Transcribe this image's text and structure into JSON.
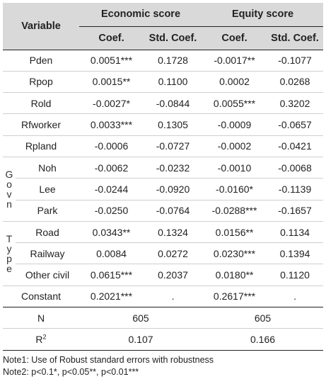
{
  "header": {
    "variable": "Variable",
    "economic": "Economic score",
    "equity": "Equity score",
    "coef": "Coef.",
    "std_coef": "Std. Coef."
  },
  "group_labels": {
    "govn": [
      "G",
      "o",
      "v",
      "n"
    ],
    "type": [
      "T",
      "y",
      "p",
      "e"
    ]
  },
  "rows": [
    {
      "var": "Pden",
      "e_coef": "0.0051***",
      "e_std": "0.1728",
      "q_coef": "-0.0017**",
      "q_std": "-0.1077"
    },
    {
      "var": "Rpop",
      "e_coef": "0.0015**",
      "e_std": "0.1100",
      "q_coef": "0.0002",
      "q_std": "0.0268"
    },
    {
      "var": "Rold",
      "e_coef": "-0.0027*",
      "e_std": "-0.0844",
      "q_coef": "0.0055***",
      "q_std": "0.3202"
    },
    {
      "var": "Rfworker",
      "e_coef": "0.0033***",
      "e_std": "0.1305",
      "q_coef": "-0.0009",
      "q_std": "-0.0657"
    },
    {
      "var": "Rpland",
      "e_coef": "-0.0006",
      "e_std": "-0.0727",
      "q_coef": "-0.0002",
      "q_std": "-0.0421"
    },
    {
      "var": "Noh",
      "e_coef": "-0.0062",
      "e_std": "-0.0232",
      "q_coef": "-0.0010",
      "q_std": "-0.0068"
    },
    {
      "var": "Lee",
      "e_coef": "-0.0244",
      "e_std": "-0.0920",
      "q_coef": "-0.0160*",
      "q_std": "-0.1139"
    },
    {
      "var": "Park",
      "e_coef": "-0.0250",
      "e_std": "-0.0764",
      "q_coef": "-0.0288***",
      "q_std": "-0.1657"
    },
    {
      "var": "Road",
      "e_coef": "0.0343**",
      "e_std": "0.1324",
      "q_coef": "0.0156**",
      "q_std": "0.1134"
    },
    {
      "var": "Railway",
      "e_coef": "0.0084",
      "e_std": "0.0272",
      "q_coef": "0.0230***",
      "q_std": "0.1394"
    },
    {
      "var": "Other civil",
      "e_coef": "0.0615***",
      "e_std": "0.2037",
      "q_coef": "0.0180**",
      "q_std": "0.1120"
    },
    {
      "var": "Constant",
      "e_coef": "0.2021***",
      "e_std": ".",
      "q_coef": "0.2617***",
      "q_std": "."
    }
  ],
  "n_row": {
    "label": "N",
    "economic": "605",
    "equity": "605"
  },
  "r2_row": {
    "label": "R",
    "sup": "2",
    "economic": "0.107",
    "equity": "0.166"
  },
  "notes": {
    "note1": "Note1: Use of Robust standard errors with robustness",
    "note2": "Note2: p<0.1*, p<0.05**, p<0.01***"
  }
}
